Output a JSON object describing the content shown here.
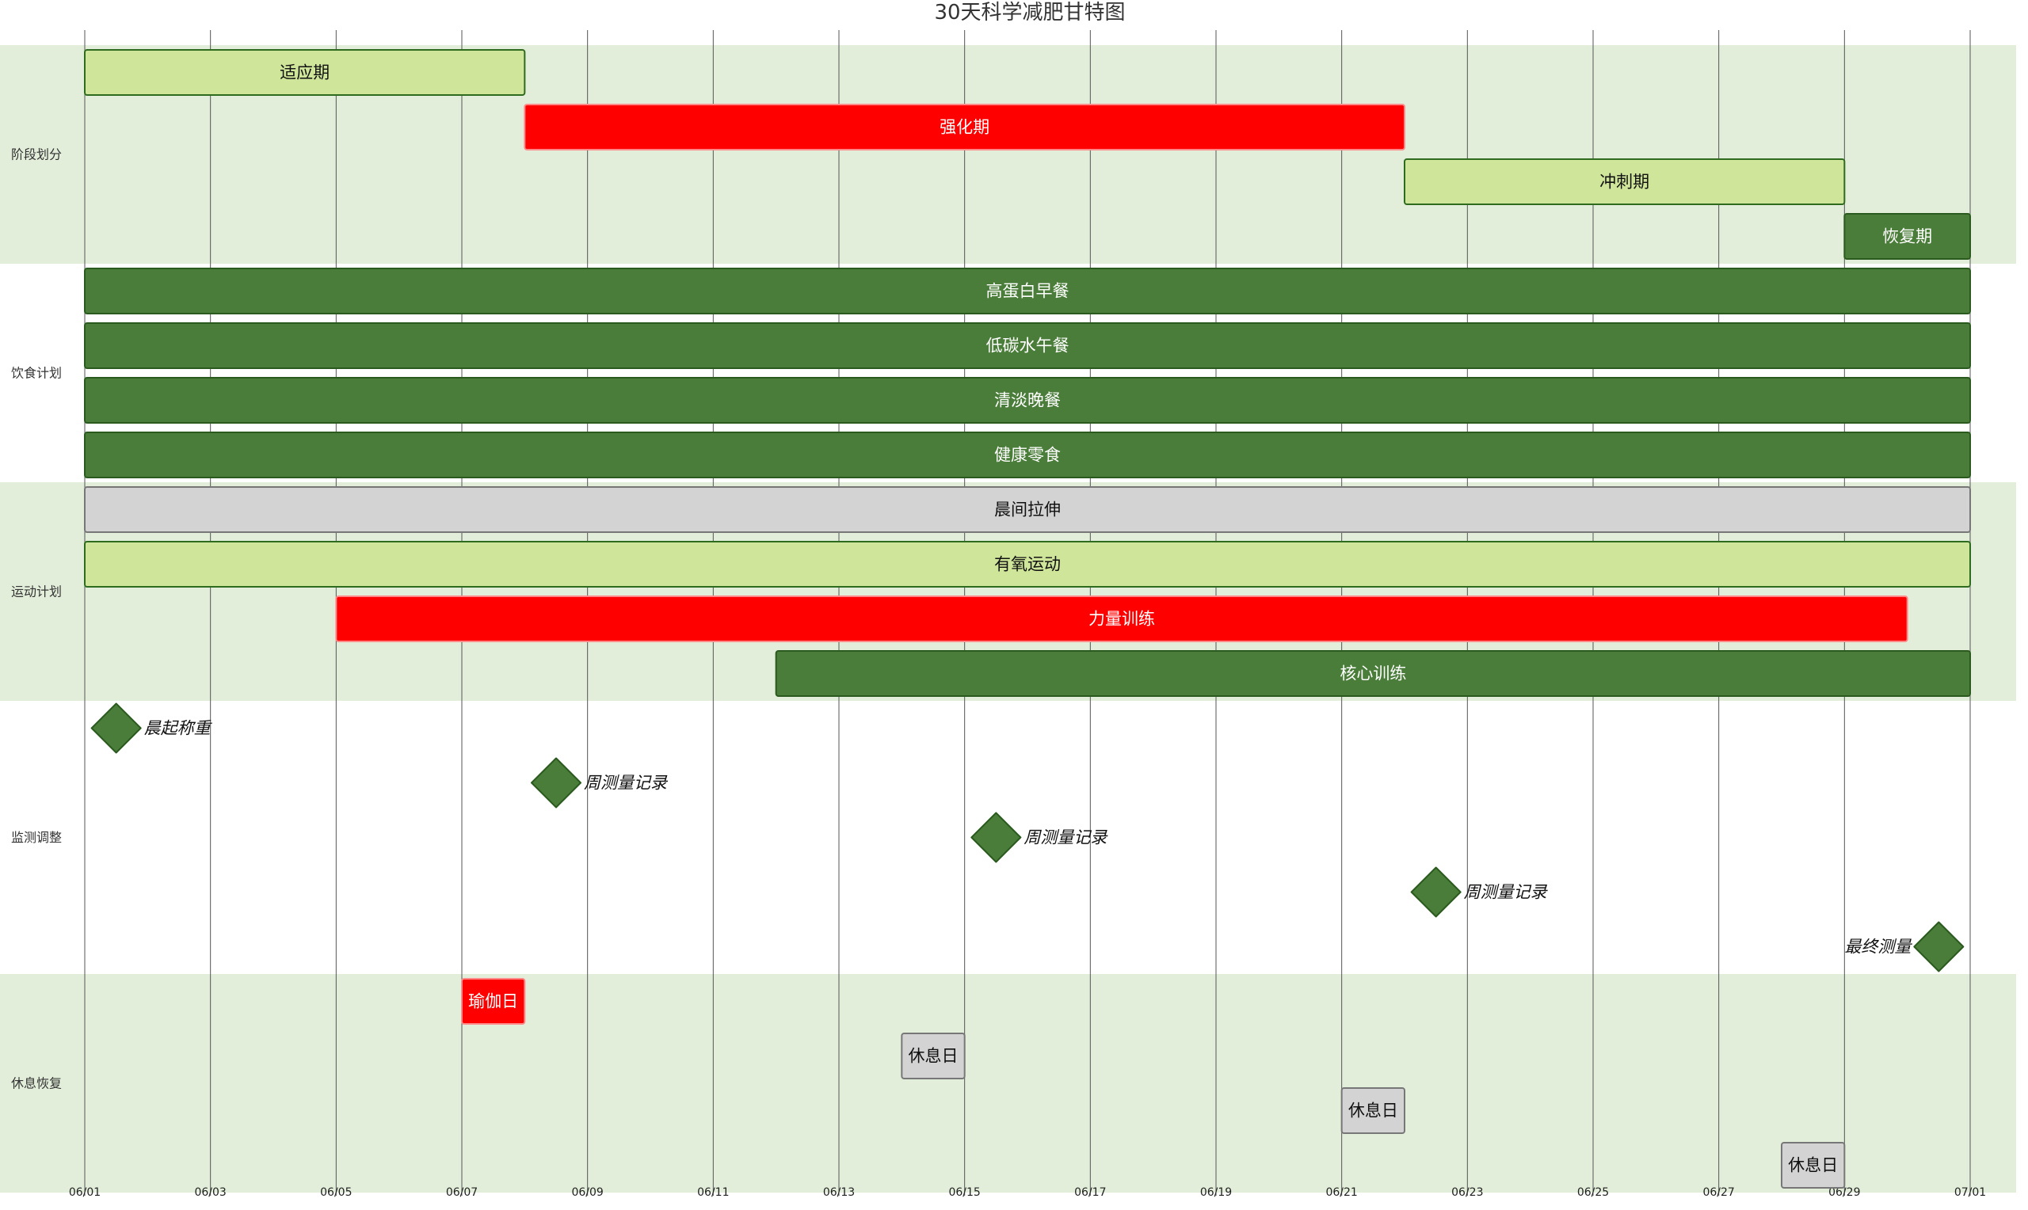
{
  "chart_data": {
    "type": "gantt",
    "title": "30天科学减肥甘特图",
    "x_range": [
      "06/01",
      "07/01"
    ],
    "x_ticks": [
      "06/01",
      "06/03",
      "06/05",
      "06/07",
      "06/09",
      "06/11",
      "06/13",
      "06/15",
      "06/17",
      "06/19",
      "06/21",
      "06/23",
      "06/25",
      "06/27",
      "06/29",
      "07/01"
    ],
    "sections": [
      {
        "name": "阶段划分",
        "shaded": true,
        "items": [
          {
            "kind": "task",
            "label": "适应期",
            "start": "06/01",
            "end": "06/08",
            "style": "light"
          },
          {
            "kind": "task",
            "label": "强化期",
            "start": "06/08",
            "end": "06/22",
            "style": "critical"
          },
          {
            "kind": "task",
            "label": "冲刺期",
            "start": "06/22",
            "end": "06/29",
            "style": "light"
          },
          {
            "kind": "task",
            "label": "恢复期",
            "start": "06/29",
            "end": "07/01",
            "style": "dark"
          }
        ]
      },
      {
        "name": "饮食计划",
        "shaded": false,
        "items": [
          {
            "kind": "task",
            "label": "高蛋白早餐",
            "start": "06/01",
            "end": "07/01",
            "style": "dark"
          },
          {
            "kind": "task",
            "label": "低碳水午餐",
            "start": "06/01",
            "end": "07/01",
            "style": "dark"
          },
          {
            "kind": "task",
            "label": "清淡晚餐",
            "start": "06/01",
            "end": "07/01",
            "style": "dark"
          },
          {
            "kind": "task",
            "label": "健康零食",
            "start": "06/01",
            "end": "07/01",
            "style": "dark"
          }
        ]
      },
      {
        "name": "运动计划",
        "shaded": true,
        "items": [
          {
            "kind": "task",
            "label": "晨间拉伸",
            "start": "06/01",
            "end": "07/01",
            "style": "gray"
          },
          {
            "kind": "task",
            "label": "有氧运动",
            "start": "06/01",
            "end": "07/01",
            "style": "light"
          },
          {
            "kind": "task",
            "label": "力量训练",
            "start": "06/05",
            "end": "06/30",
            "style": "critical"
          },
          {
            "kind": "task",
            "label": "核心训练",
            "start": "06/12",
            "end": "07/01",
            "style": "dark"
          }
        ]
      },
      {
        "name": "监测调整",
        "shaded": false,
        "items": [
          {
            "kind": "milestone",
            "label": "晨起称重",
            "date": "06/01",
            "label_side": "right"
          },
          {
            "kind": "milestone",
            "label": "周测量记录",
            "date": "06/08",
            "label_side": "right"
          },
          {
            "kind": "milestone",
            "label": "周测量记录",
            "date": "06/15",
            "label_side": "right"
          },
          {
            "kind": "milestone",
            "label": "周测量记录",
            "date": "06/22",
            "label_side": "right"
          },
          {
            "kind": "milestone",
            "label": "最终测量",
            "date": "06/30",
            "label_side": "left"
          }
        ]
      },
      {
        "name": "休息恢复",
        "shaded": true,
        "items": [
          {
            "kind": "task",
            "label": "瑜伽日",
            "start": "06/07",
            "end": "06/08",
            "style": "critical"
          },
          {
            "kind": "task",
            "label": "休息日",
            "start": "06/14",
            "end": "06/15",
            "style": "gray"
          },
          {
            "kind": "task",
            "label": "休息日",
            "start": "06/21",
            "end": "06/22",
            "style": "gray"
          },
          {
            "kind": "task",
            "label": "休息日",
            "start": "06/28",
            "end": "06/29",
            "style": "gray"
          }
        ]
      }
    ],
    "colors": {
      "light_fill": "#cfe59a",
      "light_stroke": "#2e6b1e",
      "dark_fill": "#4a7d39",
      "dark_stroke": "#2a5a1e",
      "critical_fill": "#ff0000",
      "critical_stroke": "#ff8888",
      "gray_fill": "#d3d3d3",
      "gray_stroke": "#777777",
      "milestone_fill": "#4a7d39",
      "section_shade": "#e2eeda",
      "grid": "#555555"
    }
  }
}
